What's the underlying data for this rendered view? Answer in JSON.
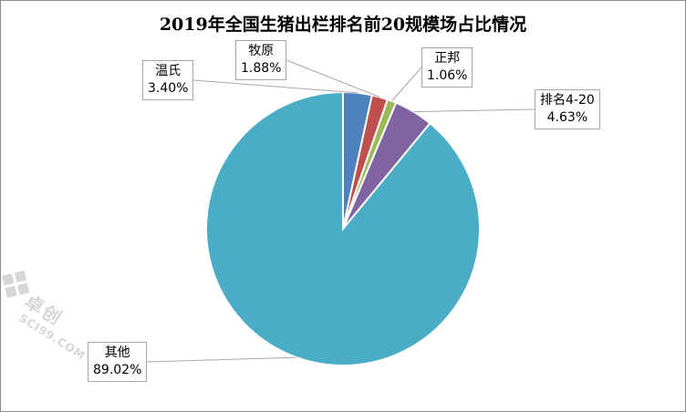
{
  "chart_data": {
    "type": "pie",
    "title": "2019年全国生猪出栏排名前20规模场占比情况",
    "categories": [
      "温氏",
      "牧原",
      "正邦",
      "排名4-20",
      "其他"
    ],
    "values": [
      3.4,
      1.88,
      1.06,
      4.63,
      89.02
    ],
    "value_labels": [
      "3.40%",
      "1.88%",
      "1.06%",
      "4.63%",
      "89.02%"
    ],
    "colors": [
      "#4f81bd",
      "#c0504d",
      "#9bbb59",
      "#8064a2",
      "#4bacc6"
    ],
    "legend": "none"
  },
  "watermark": {
    "name": "卓创",
    "site": "SCI99.COM"
  }
}
